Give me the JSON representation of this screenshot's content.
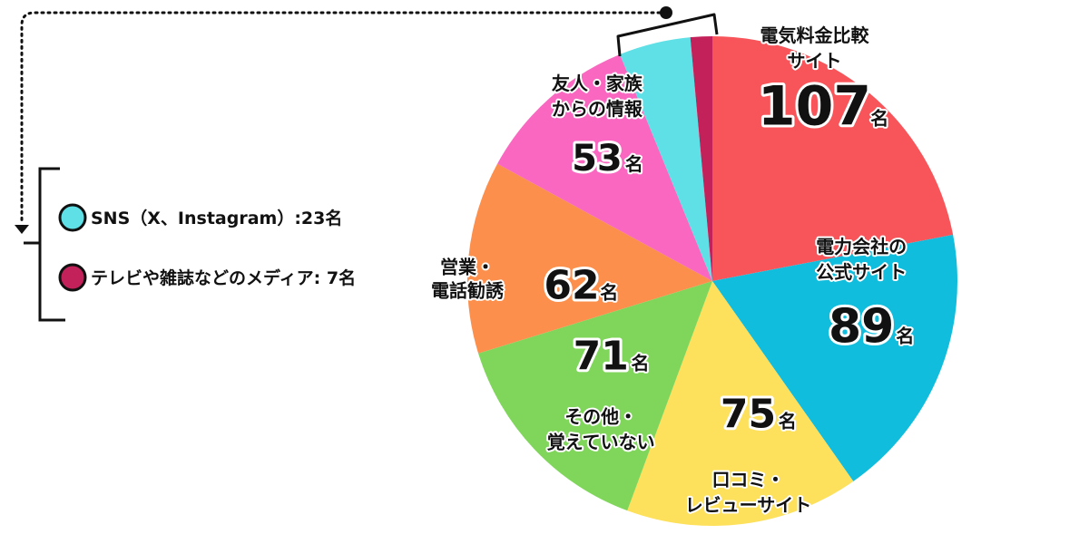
{
  "chart_data": {
    "type": "pie",
    "unit": "名",
    "slices": [
      {
        "label": "電気料金比較\nサイト",
        "value": 107,
        "color": "#f8555a"
      },
      {
        "label": "電力会社の\n公式サイト",
        "value": 89,
        "color": "#10bddc"
      },
      {
        "label": "口コミ・\nレビューサイト",
        "value": 75,
        "color": "#fde05c"
      },
      {
        "label": "その他・\n覚えていない",
        "value": 71,
        "color": "#7fd65a"
      },
      {
        "label": "営業・\n電話勧誘",
        "value": 62,
        "color": "#fc8f4c"
      },
      {
        "label": "友人・家族\nからの情報",
        "value": 53,
        "color": "#fa67c1"
      },
      {
        "label": "SNS（X、Instagram）",
        "value": 23,
        "color": "#5ee0e6"
      },
      {
        "label": "テレビや雑誌などのメディア",
        "value": 7,
        "color": "#c3215a"
      }
    ],
    "legend": [
      {
        "text": "SNS（X、Instagram）:23名",
        "color": "#5ee0e6"
      },
      {
        "text": "テレビや雑誌などのメディア: 7名",
        "color": "#c3215a"
      }
    ]
  }
}
